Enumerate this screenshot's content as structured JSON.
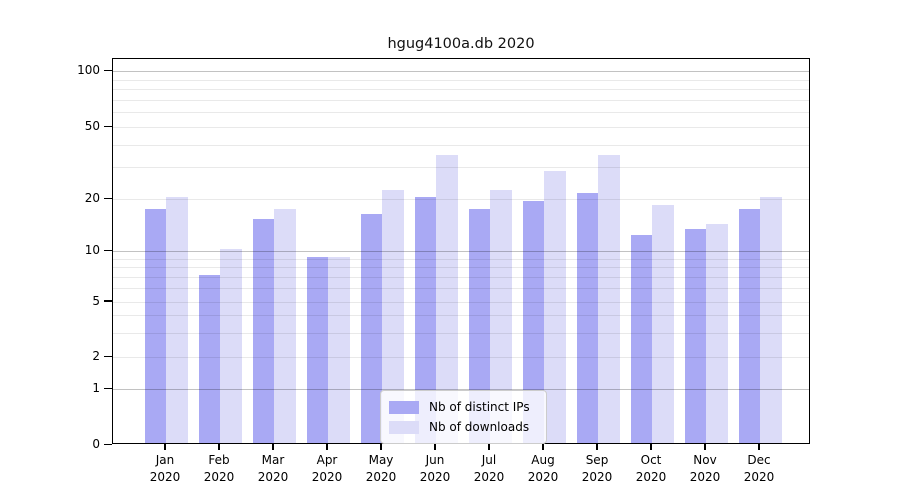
{
  "window_title": "hgug4100a.db 2020",
  "chart_data": {
    "type": "bar",
    "title": "hgug4100a.db 2020",
    "xlabel": "",
    "ylabel": "",
    "categories": [
      "Jan",
      "Feb",
      "Mar",
      "Apr",
      "May",
      "Jun",
      "Jul",
      "Aug",
      "Sep",
      "Oct",
      "Nov",
      "Dec"
    ],
    "category_year": "2020",
    "series": [
      {
        "name": "Nb of distinct IPs",
        "color": "#a9a9f4",
        "values": [
          17,
          7,
          15,
          9,
          16,
          20,
          17,
          19,
          21,
          12,
          13,
          17
        ]
      },
      {
        "name": "Nb of downloads",
        "color": "#dcdcf8",
        "values": [
          20,
          10,
          17,
          9,
          22,
          34,
          22,
          28,
          34,
          18,
          14,
          20
        ]
      }
    ],
    "y_axis": {
      "scale": "log-like (compressed log with linear 0-1 segment)",
      "ticks": [
        0,
        1,
        2,
        5,
        10,
        20,
        50,
        100
      ],
      "major_gridlines": [
        1,
        10,
        100
      ],
      "minor_gridlines": [
        2,
        3,
        4,
        5,
        6,
        7,
        8,
        9,
        20,
        30,
        40,
        50,
        60,
        70,
        80,
        90
      ],
      "range": [
        0,
        117
      ],
      "grid": true
    },
    "legend": {
      "position": "bottom-center",
      "entries": [
        "Nb of distinct IPs",
        "Nb of downloads"
      ]
    }
  },
  "colors": {
    "bar_distinct_ips": "#a9a9f4",
    "bar_downloads": "#dcdcf8",
    "grid_minor": "#e9e9e9",
    "grid_major": "#bdbdbd",
    "spine": "#000000",
    "legend_background": "rgba(255,255,255,0.8)",
    "legend_border": "#cccccc",
    "text": "#000000"
  }
}
